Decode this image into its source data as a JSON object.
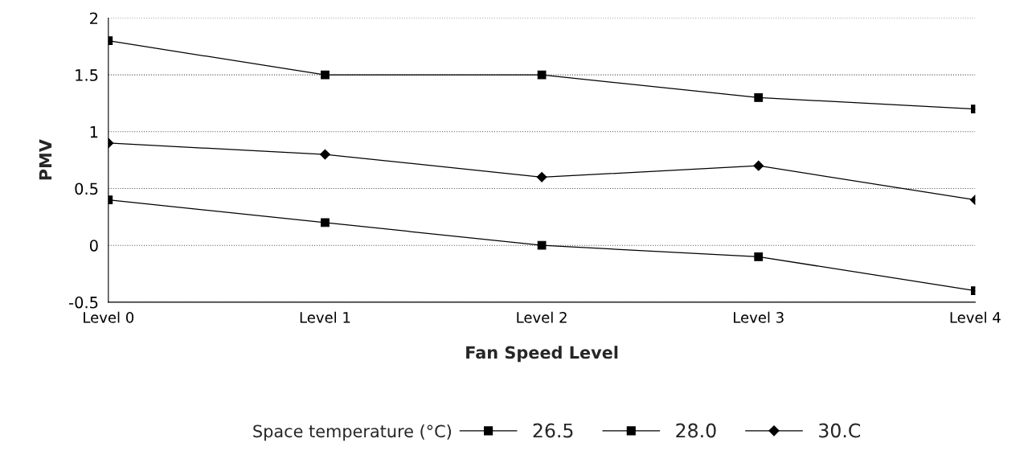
{
  "chart_data": {
    "type": "line",
    "xlabel": "Fan Speed Level",
    "ylabel": "PMV",
    "legend_title": "Space temperature (°C)",
    "categories": [
      "Level 0",
      "Level 1",
      "Level 2",
      "Level 3",
      "Level 4"
    ],
    "series": [
      {
        "name": "26.5",
        "color": "#000000",
        "marker": "square",
        "values": [
          0.4,
          0.2,
          0.0,
          -0.1,
          -0.4
        ]
      },
      {
        "name": "28.0",
        "color": "#000000",
        "marker": "square",
        "values": [
          1.8,
          1.5,
          1.5,
          1.3,
          1.2
        ]
      },
      {
        "name": "30.C",
        "color": "#000000",
        "marker": "diamond",
        "values": [
          0.9,
          0.8,
          0.6,
          0.7,
          0.4
        ]
      }
    ],
    "ylim": [
      -0.5,
      2
    ],
    "yticks": [
      -0.5,
      0,
      0.5,
      1,
      1.5,
      2
    ],
    "grid": "y",
    "legend": "bottom",
    "line_style": "solid"
  }
}
